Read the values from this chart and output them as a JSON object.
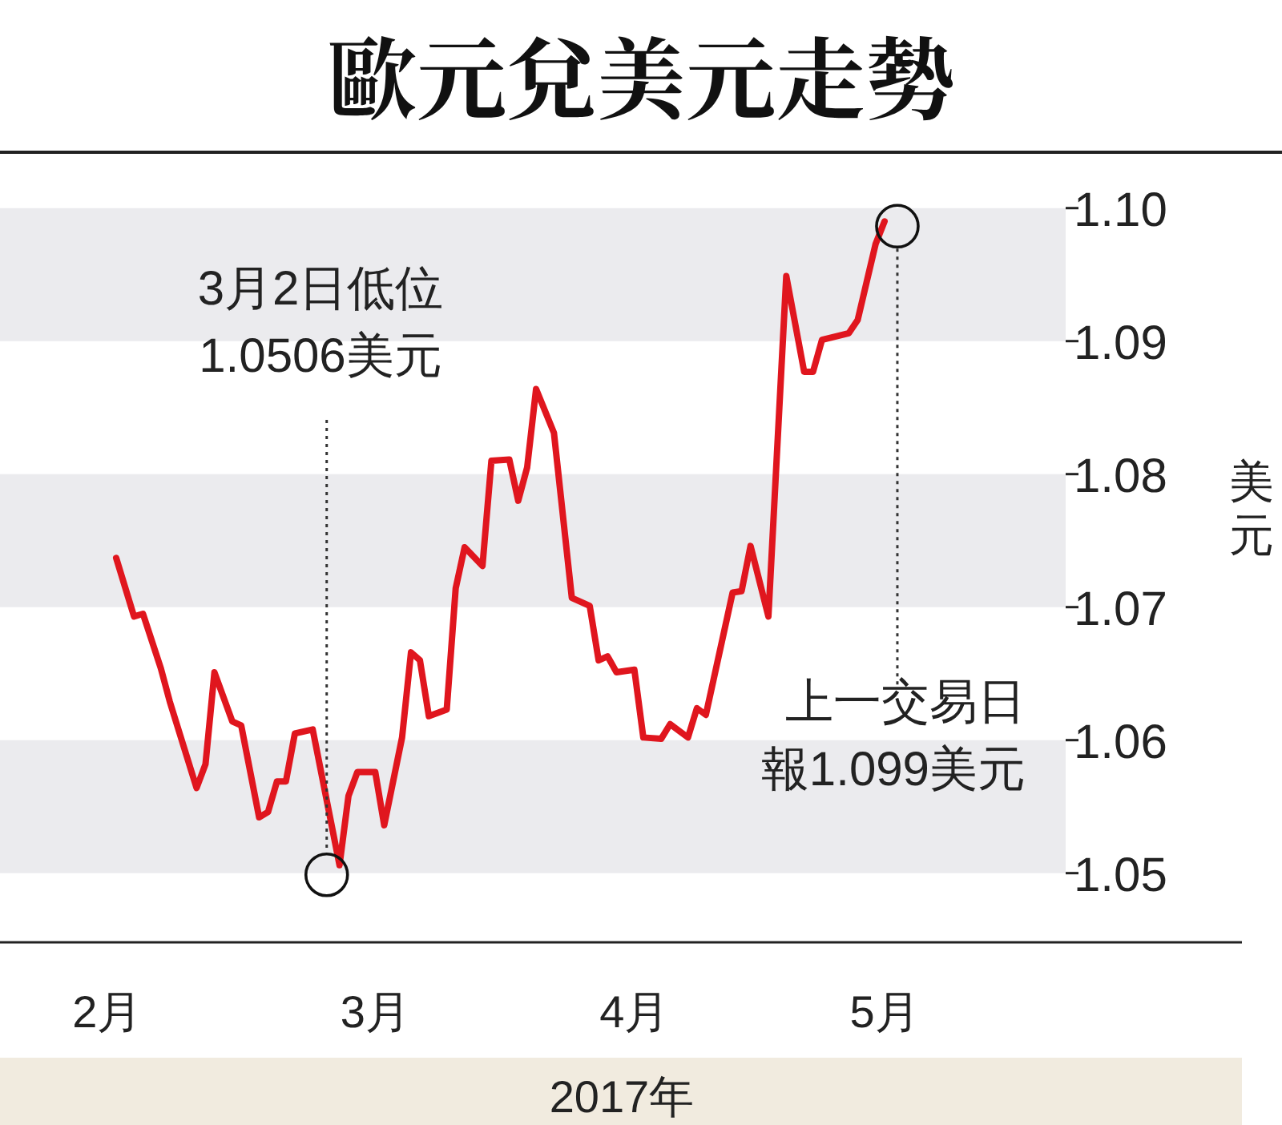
{
  "chart_data": {
    "type": "line",
    "title": "歐元兌美元走勢",
    "xlabel": "2017年",
    "ylabel": "美元",
    "series": [
      {
        "color": "#e0161e",
        "x": [
          "2017-02-05",
          "2017-02-07",
          "2017-02-08",
          "2017-02-10",
          "2017-02-11",
          "2017-02-14",
          "2017-02-15",
          "2017-02-16",
          "2017-02-18",
          "2017-02-19",
          "2017-02-21",
          "2017-02-22",
          "2017-02-23",
          "2017-02-24",
          "2017-02-25",
          "2017-02-27",
          "2017-03-02",
          "2017-03-03",
          "2017-03-04",
          "2017-03-06",
          "2017-03-07",
          "2017-03-09",
          "2017-03-10",
          "2017-03-11",
          "2017-03-12",
          "2017-03-14",
          "2017-03-15",
          "2017-03-16",
          "2017-03-18",
          "2017-03-19",
          "2017-03-21",
          "2017-03-22",
          "2017-03-23",
          "2017-03-24",
          "2017-03-26",
          "2017-03-28",
          "2017-03-30",
          "2017-03-31",
          "2017-04-01",
          "2017-04-02",
          "2017-04-04",
          "2017-04-05",
          "2017-04-07",
          "2017-04-08",
          "2017-04-10",
          "2017-04-11",
          "2017-04-12",
          "2017-04-15",
          "2017-04-16",
          "2017-04-17",
          "2017-04-19",
          "2017-04-21",
          "2017-04-23",
          "2017-04-24",
          "2017-04-25",
          "2017-04-28",
          "2017-04-29",
          "2017-05-01",
          "2017-05-02"
        ],
        "values": [
          1.0737,
          1.0693,
          1.0695,
          1.0654,
          1.0629,
          1.0564,
          1.0582,
          1.0651,
          1.0614,
          1.0611,
          1.0542,
          1.0546,
          1.0569,
          1.0569,
          1.0605,
          1.0608,
          1.0506,
          1.0558,
          1.0576,
          1.0576,
          1.0536,
          1.0602,
          1.0666,
          1.066,
          1.0618,
          1.0623,
          1.0714,
          1.0745,
          1.0731,
          1.081,
          1.0811,
          1.078,
          1.0805,
          1.0864,
          1.0831,
          1.0707,
          1.0701,
          1.066,
          1.0663,
          1.0651,
          1.0653,
          1.0602,
          1.0601,
          1.0612,
          1.0602,
          1.0624,
          1.0619,
          1.0711,
          1.0712,
          1.0746,
          1.0693,
          1.0949,
          1.0877,
          1.0877,
          1.0901,
          1.0906,
          1.0916,
          1.0973,
          1.099
        ]
      }
    ],
    "xlim": [
      "2017-01-23",
      "2017-06-11"
    ],
    "xticks": [
      {
        "value": "2017-02-04",
        "label": "2月"
      },
      {
        "value": "2017-03-06",
        "label": "3月"
      },
      {
        "value": "2017-04-04",
        "label": "4月"
      },
      {
        "value": "2017-05-02",
        "label": "5月"
      }
    ],
    "ylim": [
      1.0448,
      1.1042
    ],
    "yticks": [
      1.05,
      1.06,
      1.07,
      1.08,
      1.09,
      {
        "value": 1.1,
        "label": "1.10"
      }
    ],
    "bands": [
      {
        "axis": "y",
        "from": 1.05,
        "to": 1.06,
        "color": "#ebebee"
      },
      {
        "axis": "y",
        "from": 1.07,
        "to": 1.08,
        "color": "#ebebee"
      },
      {
        "axis": "y",
        "from": 1.09,
        "to": 1.1,
        "color": "#ebebee"
      }
    ],
    "annotations": [
      "3月2日低位",
      "1.0506美元",
      "上一交易日",
      "報1.099美元"
    ],
    "line_style": "solid",
    "marker": "none",
    "grid": false
  }
}
